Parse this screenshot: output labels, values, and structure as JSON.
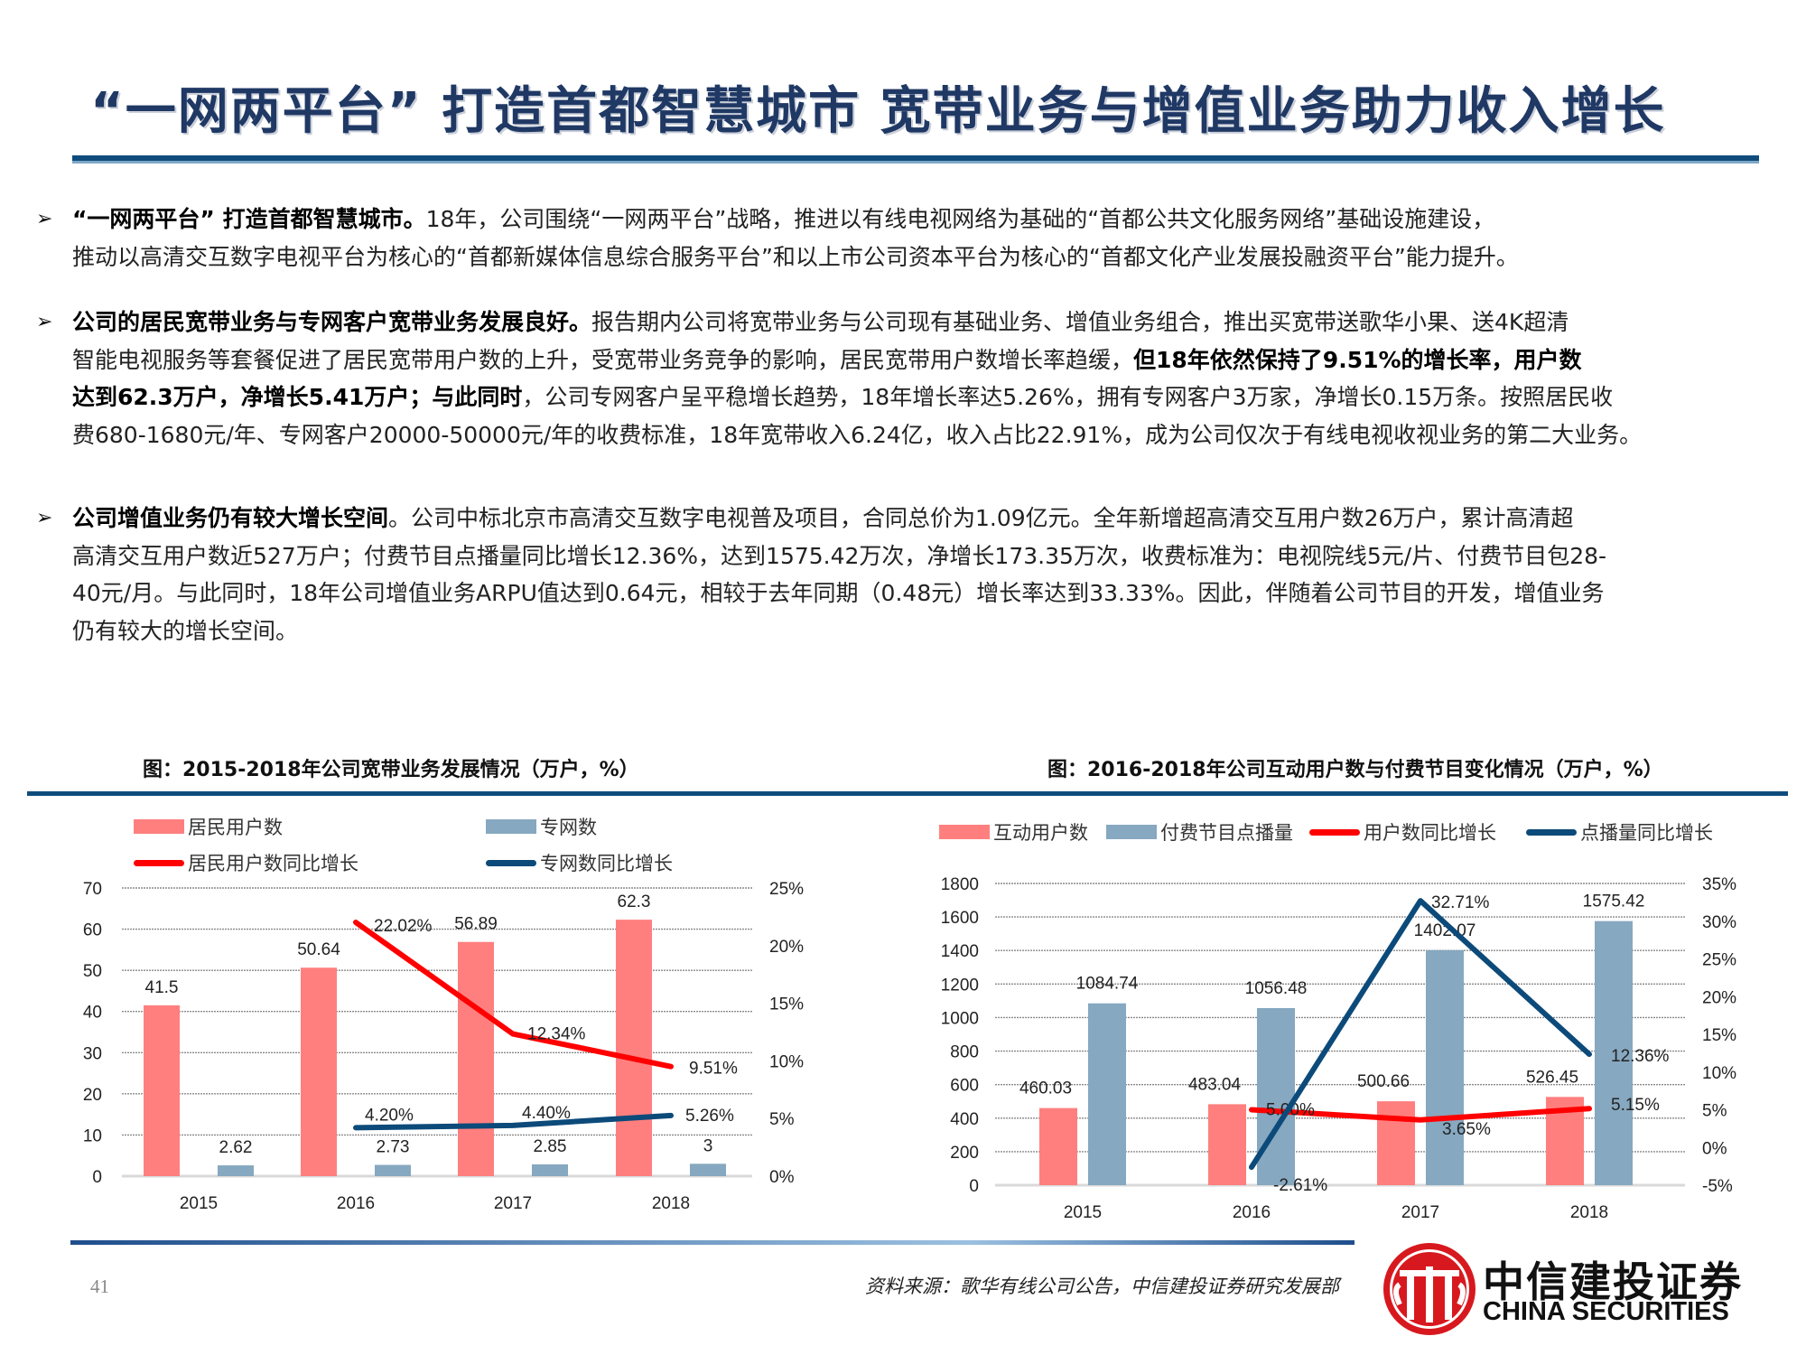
{
  "header": {
    "title": "“一网两平台” 打造首都智慧城市 宽带业务与增值业务助力收入增长"
  },
  "bullets": [
    {
      "lines": [
        [
          {
            "t": "“一网两平台” 打造首都智慧城市。",
            "b": true
          },
          {
            "t": "18年，公司围绕“一网两平台”战略，推进以有线电视网络为基础的“首都公共文化服务网络”基础设施建设，",
            "b": false
          }
        ],
        [
          {
            "t": "推动以高清交互数字电视平台为核心的“首都新媒体信息综合服务平台”和以上市公司资本平台为核心的“首都文化产业发展投融资平台”能力提升。",
            "b": false
          }
        ]
      ]
    },
    {
      "lines": [
        [
          {
            "t": "公司的居民宽带业务与专网客户宽带业务发展良好。",
            "b": true
          },
          {
            "t": "报告期内公司将宽带业务与公司现有基础业务、增值业务组合，推出买宽带送歌华小果、送4K超清",
            "b": false
          }
        ],
        [
          {
            "t": "智能电视服务等套餐促进了居民宽带用户数的上升，受宽带业务竞争的影响，居民宽带用户数增长率趋缓，",
            "b": false
          },
          {
            "t": "但18年依然保持了9.51%的增长率，用户数",
            "b": true
          }
        ],
        [
          {
            "t": "达到62.3万户，净增长5.41万户；与此同时",
            "b": true
          },
          {
            "t": "，公司专网客户呈平稳增长趋势，18年增长率达5.26%，拥有专网客户3万家，净增长0.15万条。按照居民收",
            "b": false
          }
        ],
        [
          {
            "t": "费680-1680元/年、专网客户20000-50000元/年的收费标准，18年宽带收入6.24亿，收入占比22.91%，成为公司仅次于有线电视收视业务的第二大业务。",
            "b": false
          }
        ]
      ]
    },
    {
      "lines": [
        [
          {
            "t": "公司增值业务仍有较大增长空间",
            "b": true
          },
          {
            "t": "。公司中标北京市高清交互数字电视普及项目，合同总价为1.09亿元。全年新增超高清交互用户数26万户，累计高清超",
            "b": false
          }
        ],
        [
          {
            "t": "高清交互用户数近527万户；付费节目点播量同比增长12.36%，达到1575.42万次，净增长173.35万次，收费标准为：电视院线5元/片、付费节目包28-",
            "b": false
          }
        ],
        [
          {
            "t": "40元/月。与此同时，18年公司增值业务ARPU值达到0.64元，相较于去年同期（0.48元）增长率达到33.33%。因此，伴随着公司节目的开发，增值业务",
            "b": false
          }
        ],
        [
          {
            "t": "仍有较大的增长空间。",
            "b": false
          }
        ]
      ]
    }
  ],
  "bullet_icon": "arrow-right-icon",
  "chart_data": [
    {
      "type": "bar",
      "title": "图：2015-2018年公司宽带业务发展情况（万户，%）",
      "categories": [
        "2015",
        "2016",
        "2017",
        "2018"
      ],
      "series": [
        {
          "name": "居民用户数",
          "kind": "bar",
          "axis": "left",
          "color": "#ff7f7f",
          "values": [
            41.5,
            50.64,
            56.89,
            62.3
          ],
          "labels": [
            "41.5",
            "50.64",
            "56.89",
            "62.3"
          ]
        },
        {
          "name": "专网数",
          "kind": "bar",
          "axis": "left",
          "color": "#86a8c0",
          "values": [
            2.62,
            2.73,
            2.85,
            3
          ],
          "labels": [
            "2.62",
            "2.73",
            "2.85",
            "3"
          ]
        },
        {
          "name": "居民用户数同比增长",
          "kind": "line",
          "axis": "right",
          "color": "#ff0000",
          "values": [
            null,
            22.02,
            12.34,
            9.51
          ],
          "labels": [
            "",
            "22.02%",
            "12.34%",
            "9.51%"
          ]
        },
        {
          "name": "专网数同比增长",
          "kind": "line",
          "axis": "right",
          "color": "#0c4a7a",
          "values": [
            null,
            4.2,
            4.4,
            5.26
          ],
          "labels": [
            "",
            "4.20%",
            "4.40%",
            "5.26%"
          ]
        }
      ],
      "y_left": {
        "min": 0,
        "max": 70,
        "ticks": [
          "0",
          "10",
          "20",
          "30",
          "40",
          "50",
          "60",
          "70"
        ]
      },
      "y_right": {
        "min": 0,
        "max": 25,
        "ticks": [
          "0%",
          "5%",
          "10%",
          "15%",
          "20%",
          "25%"
        ]
      },
      "grid": true,
      "legend_position": "top"
    },
    {
      "type": "bar",
      "title": "图：2016-2018年公司互动用户数与付费节目变化情况（万户，%）",
      "categories": [
        "2015",
        "2016",
        "2017",
        "2018"
      ],
      "series": [
        {
          "name": "互动用户数",
          "kind": "bar",
          "axis": "left",
          "color": "#ff7f7f",
          "values": [
            460.03,
            483.04,
            500.66,
            526.45
          ],
          "labels": [
            "460.03",
            "483.04",
            "500.66",
            "526.45"
          ]
        },
        {
          "name": "付费节目点播量",
          "kind": "bar",
          "axis": "left",
          "color": "#86a8c0",
          "values": [
            1084.74,
            1056.48,
            1402.07,
            1575.42
          ],
          "labels": [
            "1084.74",
            "1056.48",
            "1402.07",
            "1575.42"
          ]
        },
        {
          "name": "用户数同比增长",
          "kind": "line",
          "axis": "right",
          "color": "#ff0000",
          "values": [
            null,
            5.0,
            3.65,
            5.15
          ],
          "labels": [
            "",
            "5.00%",
            "3.65%",
            "5.15%"
          ]
        },
        {
          "name": "点播量同比增长",
          "kind": "line",
          "axis": "right",
          "color": "#0c4a7a",
          "values": [
            null,
            -2.61,
            32.71,
            12.36
          ],
          "labels": [
            "",
            "-2.61%",
            "32.71%",
            "12.36%"
          ]
        }
      ],
      "y_left": {
        "min": 0,
        "max": 1800,
        "ticks": [
          "0",
          "200",
          "400",
          "600",
          "800",
          "1000",
          "1200",
          "1400",
          "1600",
          "1800"
        ]
      },
      "y_right": {
        "min": -5,
        "max": 35,
        "ticks": [
          "-5%",
          "0%",
          "5%",
          "10%",
          "15%",
          "20%",
          "25%",
          "30%",
          "35%"
        ]
      },
      "grid": true,
      "legend_position": "top"
    }
  ],
  "footer": {
    "page_number": "41",
    "source": "资料来源：歌华有线公司公告，中信建投证券研究发展部",
    "logo_cn": "中信建投证券",
    "logo_en": "CHINA SECURITIES",
    "logo_color": "#d7191f"
  }
}
